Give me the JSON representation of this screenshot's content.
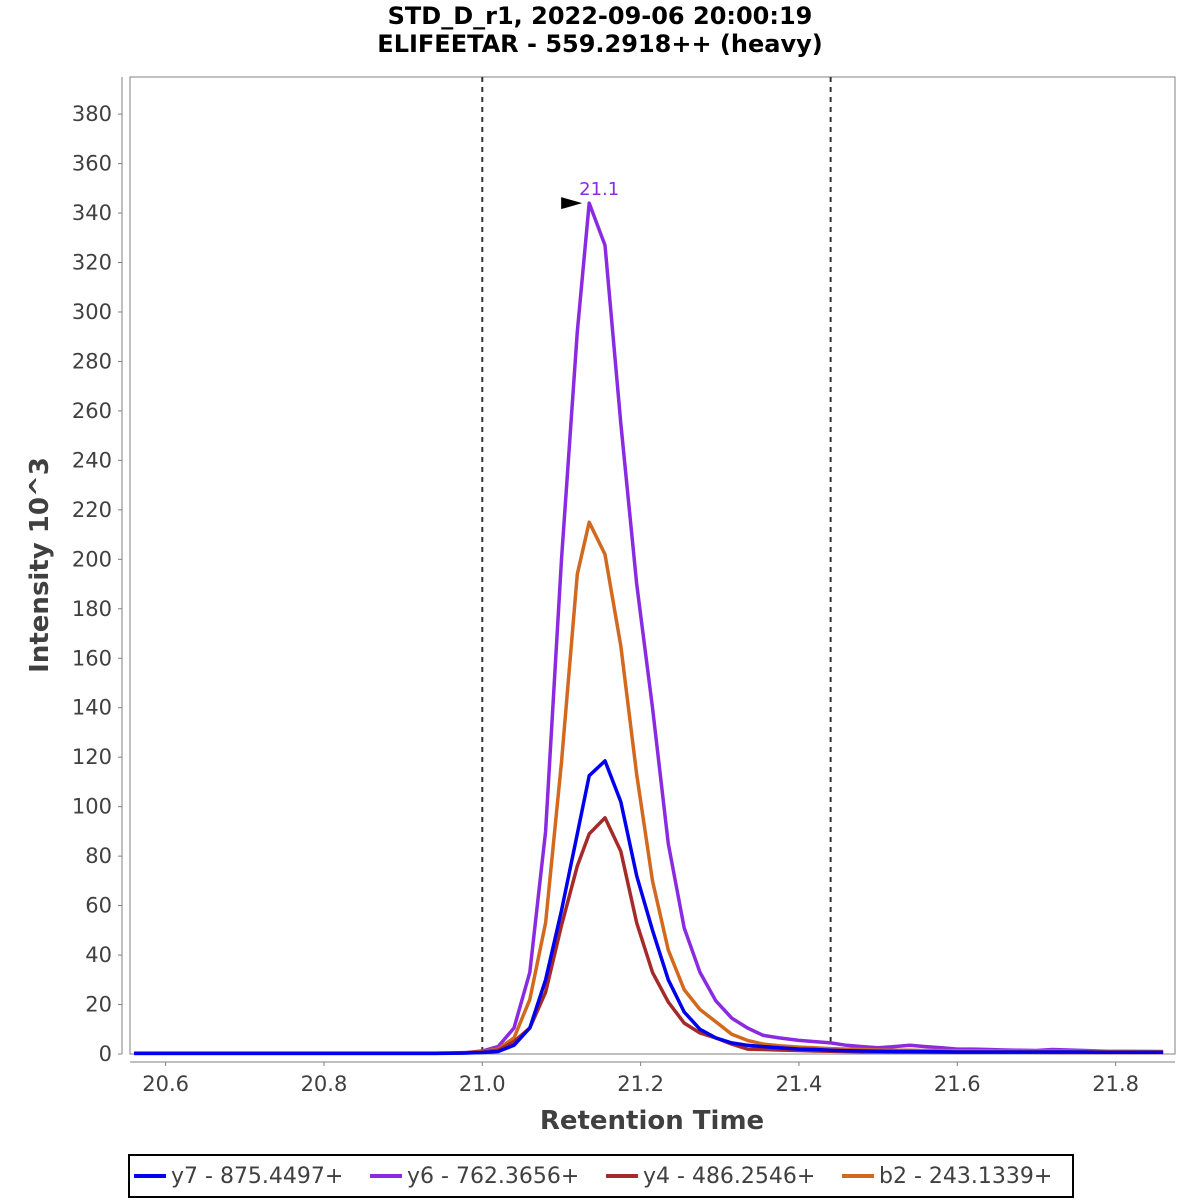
{
  "chart_data": {
    "type": "line",
    "title": "STD_D_r1, 2022-09-06 20:00:19",
    "subtitle": "ELIFEETAR - 559.2918++ (heavy)",
    "xlabel": "Retention Time",
    "ylabel": "Intensity 10^3",
    "xlim": [
      20.555,
      21.875
    ],
    "ylim": [
      0,
      395
    ],
    "xticks": [
      20.6,
      20.8,
      21.0,
      21.2,
      21.4,
      21.6,
      21.8
    ],
    "xtick_labels": [
      "20.6",
      "20.8",
      "21.0",
      "21.2",
      "21.4",
      "21.6",
      "21.8"
    ],
    "yticks": [
      0,
      20,
      40,
      60,
      80,
      100,
      120,
      140,
      160,
      180,
      200,
      220,
      240,
      260,
      280,
      300,
      320,
      340,
      360,
      380
    ],
    "ytick_labels": [
      "0",
      "20",
      "40",
      "60",
      "80",
      "100",
      "120",
      "140",
      "160",
      "180",
      "200",
      "220",
      "240",
      "260",
      "280",
      "300",
      "320",
      "340",
      "360",
      "380"
    ],
    "integration_boundaries": [
      21.0,
      21.44
    ],
    "peak_annotation": {
      "x": 21.135,
      "y": 344,
      "label": "21.1",
      "color": "#8a2be2"
    },
    "x": [
      20.56,
      20.58,
      20.6,
      20.62,
      20.64,
      20.66,
      20.68,
      20.7,
      20.72,
      20.74,
      20.76,
      20.78,
      20.8,
      20.82,
      20.84,
      20.86,
      20.88,
      20.9,
      20.92,
      20.94,
      20.96,
      20.98,
      21.0,
      21.02,
      21.04,
      21.06,
      21.08,
      21.1,
      21.12,
      21.135,
      21.155,
      21.175,
      21.195,
      21.215,
      21.235,
      21.255,
      21.275,
      21.295,
      21.315,
      21.335,
      21.355,
      21.375,
      21.4,
      21.42,
      21.44,
      21.46,
      21.48,
      21.5,
      21.52,
      21.54,
      21.56,
      21.58,
      21.6,
      21.62,
      21.64,
      21.66,
      21.68,
      21.7,
      21.72,
      21.74,
      21.76,
      21.78,
      21.8,
      21.82,
      21.84,
      21.86
    ],
    "series": [
      {
        "name": "y7 - 875.4497+",
        "color": "#0000ee",
        "values": [
          0.3,
          0.3,
          0.3,
          0.3,
          0.3,
          0.3,
          0.3,
          0.3,
          0.3,
          0.3,
          0.3,
          0.3,
          0.3,
          0.3,
          0.3,
          0.3,
          0.3,
          0.3,
          0.3,
          0.3,
          0.3,
          0.4,
          0.6,
          1.0,
          3.5,
          10.5,
          30,
          58,
          89,
          112.5,
          118.5,
          102,
          72,
          50,
          30,
          17,
          10,
          6.5,
          4.5,
          3.5,
          3.0,
          2.5,
          2.0,
          1.8,
          1.5,
          1.3,
          1.2,
          1.1,
          1.0,
          1.0,
          0.9,
          0.9,
          0.8,
          0.8,
          0.8,
          0.8,
          0.8,
          0.8,
          0.8,
          0.8,
          0.8,
          0.7,
          0.7,
          0.7,
          0.7,
          0.7
        ]
      },
      {
        "name": "y6 - 762.3656+",
        "color": "#8a2be2",
        "values": [
          0.3,
          0.3,
          0.3,
          0.3,
          0.3,
          0.3,
          0.3,
          0.3,
          0.3,
          0.3,
          0.3,
          0.3,
          0.3,
          0.3,
          0.3,
          0.3,
          0.3,
          0.3,
          0.3,
          0.3,
          0.4,
          0.6,
          1.2,
          3.0,
          10.5,
          33,
          90,
          200,
          292,
          344,
          327,
          255,
          190,
          140,
          85,
          51,
          33,
          21.5,
          14.5,
          10.5,
          7.5,
          6.5,
          5.5,
          5.0,
          4.5,
          3.5,
          3.0,
          2.5,
          3.0,
          3.5,
          3.0,
          2.5,
          2.0,
          2.0,
          1.8,
          1.6,
          1.5,
          1.4,
          1.8,
          1.6,
          1.4,
          1.2,
          1.0,
          1.0,
          1.0,
          0.9
        ]
      },
      {
        "name": "y4 - 486.2546+",
        "color": "#a52a2a",
        "values": [
          0.2,
          0.2,
          0.2,
          0.2,
          0.2,
          0.2,
          0.2,
          0.2,
          0.2,
          0.2,
          0.2,
          0.2,
          0.2,
          0.2,
          0.2,
          0.2,
          0.2,
          0.2,
          0.2,
          0.2,
          0.3,
          0.4,
          0.8,
          1.5,
          5.0,
          10.5,
          25,
          52,
          76,
          89,
          95.5,
          82,
          53,
          33,
          21,
          12.5,
          8.5,
          6.5,
          4.0,
          2.0,
          1.8,
          1.6,
          1.4,
          1.2,
          1.1,
          1.0,
          0.9,
          0.9,
          0.8,
          0.8,
          0.8,
          0.7,
          0.7,
          0.7,
          0.7,
          0.7,
          0.7,
          0.7,
          0.6,
          0.6,
          0.6,
          0.6,
          0.6,
          0.6,
          0.6,
          0.6
        ]
      },
      {
        "name": "b2 - 243.1339+",
        "color": "#d2691e",
        "values": [
          0.3,
          0.3,
          0.3,
          0.3,
          0.3,
          0.3,
          0.3,
          0.3,
          0.3,
          0.3,
          0.3,
          0.3,
          0.3,
          0.3,
          0.3,
          0.3,
          0.3,
          0.3,
          0.3,
          0.3,
          0.4,
          0.5,
          1.0,
          2.0,
          6.5,
          22,
          53,
          118,
          194,
          215,
          202,
          165,
          113,
          70,
          42,
          26,
          18,
          13,
          8,
          5.5,
          4.0,
          3.3,
          2.8,
          2.5,
          2.2,
          2.0,
          1.8,
          1.6,
          1.5,
          1.5,
          1.4,
          1.4,
          1.3,
          1.3,
          1.3,
          1.2,
          1.2,
          1.2,
          1.2,
          1.2,
          1.1,
          1.1,
          1.1,
          1.1,
          1.0,
          1.0
        ]
      }
    ],
    "legend_position": "bottom"
  }
}
